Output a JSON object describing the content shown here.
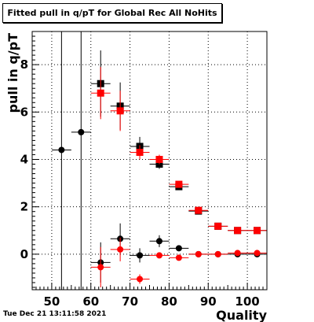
{
  "title": "Fitted pull in q/pT for Global Rec All NoHits",
  "timestamp": "Tue Dec 21 13:11:58 2021",
  "chart_data": {
    "type": "scatter",
    "title": "Fitted pull in q/pT for Global Rec All NoHits",
    "xlabel": "Quality",
    "ylabel": "pull in q/pT",
    "xlim": [
      45,
      105
    ],
    "ylim": [
      -1.5,
      9.4
    ],
    "xticks": [
      50,
      60,
      70,
      80,
      90,
      100
    ],
    "xtick_labels": [
      "50",
      "60",
      "70",
      "80",
      "90",
      "100"
    ],
    "yticks": [
      0,
      2,
      4,
      6,
      8
    ],
    "ytick_labels": [
      "0",
      "2",
      "4",
      "6",
      "8"
    ],
    "grid": true,
    "bin_half_width": 2.5,
    "series": [
      {
        "marker": "square",
        "color": "#000000",
        "points": [
          {
            "x": 62.5,
            "y": 7.2,
            "err": 1.4
          },
          {
            "x": 67.5,
            "y": 6.25,
            "err": 1.0
          },
          {
            "x": 72.5,
            "y": 4.55,
            "err": 0.4
          },
          {
            "x": 77.5,
            "y": 3.8,
            "err": 0.2
          },
          {
            "x": 82.5,
            "y": 2.85,
            "err": 0.1
          },
          {
            "x": 87.5,
            "y": 1.82,
            "err": 0.05
          },
          {
            "x": 92.5,
            "y": 1.18,
            "err": 0.04
          },
          {
            "x": 97.5,
            "y": 1.0,
            "err": 0.03
          },
          {
            "x": 102.5,
            "y": 1.0,
            "err": 0.03
          }
        ]
      },
      {
        "marker": "square",
        "color": "#ff0000",
        "points": [
          {
            "x": 62.5,
            "y": 6.8,
            "err": 1.1
          },
          {
            "x": 67.5,
            "y": 6.05,
            "err": 0.85
          },
          {
            "x": 72.5,
            "y": 4.3,
            "err": 0.3
          },
          {
            "x": 77.5,
            "y": 4.0,
            "err": 0.2
          },
          {
            "x": 82.5,
            "y": 2.95,
            "err": 0.1
          },
          {
            "x": 87.5,
            "y": 1.85,
            "err": 0.05
          },
          {
            "x": 92.5,
            "y": 1.18,
            "err": 0.04
          },
          {
            "x": 97.5,
            "y": 1.0,
            "err": 0.03
          },
          {
            "x": 102.5,
            "y": 1.0,
            "err": 0.03
          }
        ]
      },
      {
        "marker": "circle",
        "color": "#000000",
        "points": [
          {
            "x": 52.5,
            "y": 4.4,
            "err": 10
          },
          {
            "x": 57.5,
            "y": 5.15,
            "err": 10
          },
          {
            "x": 62.5,
            "y": -0.35,
            "err": 0.85
          },
          {
            "x": 67.5,
            "y": 0.65,
            "err": 0.65
          },
          {
            "x": 72.5,
            "y": -0.05,
            "err": 0.3
          },
          {
            "x": 77.5,
            "y": 0.55,
            "err": 0.25
          },
          {
            "x": 82.5,
            "y": 0.25,
            "err": 0.08
          },
          {
            "x": 87.5,
            "y": 0.0,
            "err": 0.04
          },
          {
            "x": 92.5,
            "y": 0.0,
            "err": 0.03
          },
          {
            "x": 97.5,
            "y": 0.0,
            "err": 0.03
          },
          {
            "x": 102.5,
            "y": 0.0,
            "err": 0.03
          }
        ]
      },
      {
        "marker": "circle",
        "color": "#ff0000",
        "points": [
          {
            "x": 62.5,
            "y": -0.55,
            "err": 0.85
          },
          {
            "x": 67.5,
            "y": 0.2,
            "err": 0.5
          },
          {
            "x": 72.5,
            "y": -1.05,
            "err": 0.2
          },
          {
            "x": 77.5,
            "y": -0.05,
            "err": 0.1
          },
          {
            "x": 82.5,
            "y": -0.15,
            "err": 0.05
          },
          {
            "x": 87.5,
            "y": 0.0,
            "err": 0.03
          },
          {
            "x": 92.5,
            "y": 0.0,
            "err": 0.03
          },
          {
            "x": 97.5,
            "y": 0.05,
            "err": 0.03
          },
          {
            "x": 102.5,
            "y": 0.05,
            "err": 0.03
          }
        ]
      }
    ]
  }
}
